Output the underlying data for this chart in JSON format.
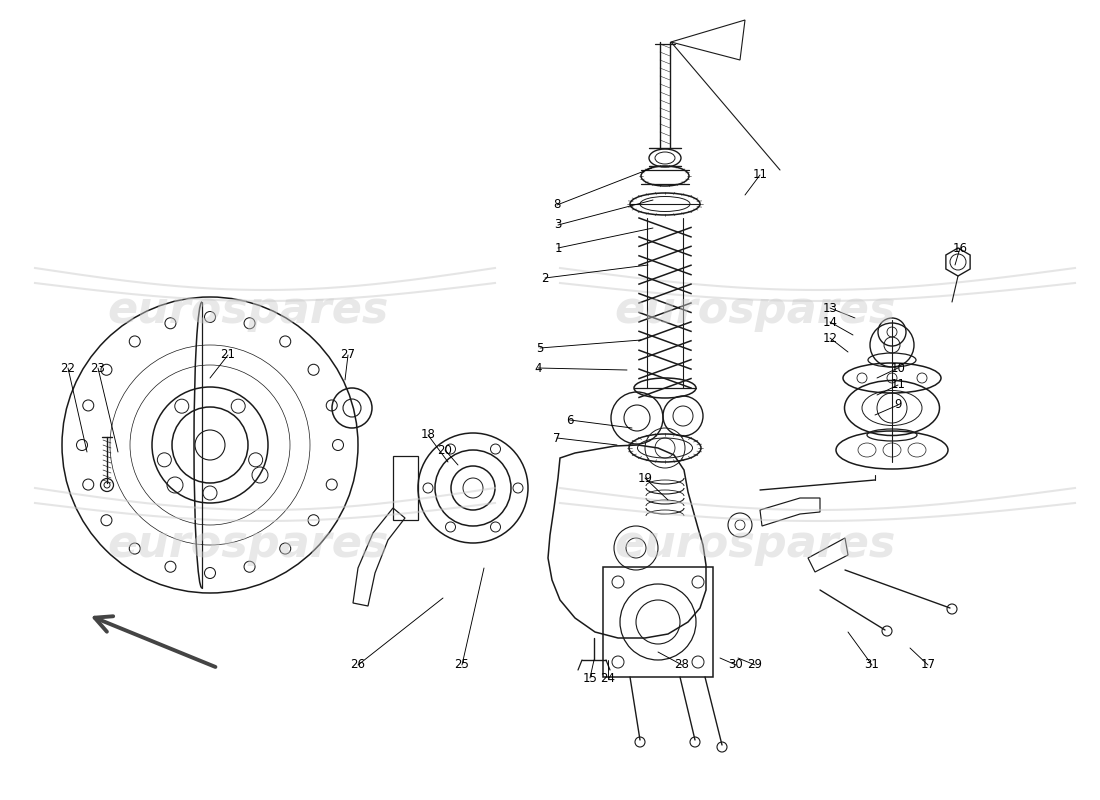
{
  "bg_color": "#ffffff",
  "line_color": "#1a1a1a",
  "wm_color": "#cccccc",
  "figsize": [
    11.0,
    8.0
  ],
  "dpi": 100,
  "labels": [
    [
      8,
      557,
      205,
      652,
      168
    ],
    [
      3,
      558,
      225,
      653,
      200
    ],
    [
      1,
      558,
      248,
      653,
      228
    ],
    [
      2,
      545,
      278,
      648,
      265
    ],
    [
      5,
      540,
      348,
      641,
      340
    ],
    [
      4,
      538,
      368,
      627,
      370
    ],
    [
      7,
      557,
      438,
      617,
      445
    ],
    [
      6,
      570,
      420,
      632,
      428
    ],
    [
      19,
      645,
      478,
      668,
      500
    ],
    [
      11,
      760,
      175,
      745,
      195
    ],
    [
      16,
      960,
      248,
      955,
      265
    ],
    [
      13,
      830,
      308,
      855,
      318
    ],
    [
      14,
      830,
      322,
      853,
      335
    ],
    [
      12,
      830,
      338,
      848,
      352
    ],
    [
      10,
      898,
      368,
      877,
      378
    ],
    [
      11,
      898,
      385,
      877,
      395
    ],
    [
      9,
      898,
      405,
      875,
      415
    ],
    [
      22,
      68,
      368,
      87,
      452
    ],
    [
      23,
      98,
      368,
      118,
      452
    ],
    [
      21,
      228,
      355,
      210,
      378
    ],
    [
      27,
      348,
      355,
      345,
      380
    ],
    [
      18,
      428,
      435,
      448,
      462
    ],
    [
      20,
      445,
      450,
      458,
      465
    ],
    [
      26,
      358,
      665,
      443,
      598
    ],
    [
      25,
      462,
      665,
      484,
      568
    ],
    [
      15,
      590,
      678,
      594,
      660
    ],
    [
      24,
      608,
      678,
      608,
      660
    ],
    [
      28,
      682,
      665,
      658,
      652
    ],
    [
      30,
      736,
      665,
      720,
      658
    ],
    [
      29,
      755,
      665,
      738,
      658
    ],
    [
      31,
      872,
      665,
      848,
      632
    ],
    [
      17,
      928,
      665,
      910,
      648
    ]
  ]
}
